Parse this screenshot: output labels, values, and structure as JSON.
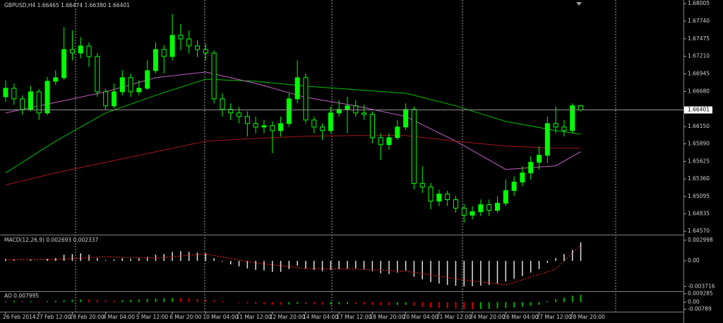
{
  "chart_data": [
    {
      "type": "candlestick",
      "title": "GBPUSD,H4  1.66465 1.66474 1.66380 1.66401",
      "color": "#00ff00",
      "up_color": "#00ff00",
      "down_color": "#000000",
      "xlim": [
        0,
        82
      ],
      "xticks": [
        {
          "value": 0,
          "label": "26 Feb 2014"
        },
        {
          "value": 4,
          "label": "27 Feb 12:00"
        },
        {
          "value": 8,
          "label": "28 Feb 20:00"
        },
        {
          "value": 12,
          "label": "4 Mar 04:00"
        },
        {
          "value": 16,
          "label": "5 Mar 12:00"
        },
        {
          "value": 20,
          "label": "6 Mar 20:00"
        },
        {
          "value": 24,
          "label": "10 Mar 04:00"
        },
        {
          "value": 28,
          "label": "11 Mar 12:00"
        },
        {
          "value": 32,
          "label": "12 Mar 20:00"
        },
        {
          "value": 36,
          "label": "14 Mar 04:00"
        },
        {
          "value": 40,
          "label": "17 Mar 12:00"
        },
        {
          "value": 44,
          "label": "18 Mar 20:00"
        },
        {
          "value": 48,
          "label": "20 Mar 04:00"
        },
        {
          "value": 52,
          "label": "21 Mar 12:00"
        },
        {
          "value": 56,
          "label": "24 Mar 20:00"
        },
        {
          "value": 60,
          "label": "26 Mar 04:00"
        },
        {
          "value": 64,
          "label": "27 Mar 12:00"
        },
        {
          "value": 68,
          "label": "28 Mar 20:00"
        }
      ],
      "ylim": [
        1.6453,
        1.6806
      ],
      "yticks": [
        1.68005,
        {
          "value": 1.6774,
          "label": "1.67740"
        },
        1.67475,
        {
          "value": 1.6721,
          "label": "1.67210"
        },
        1.66945,
        {
          "value": 1.6668,
          "label": "1.66680"
        },
        {
          "value": 1.6615,
          "label": "1.66150"
        },
        {
          "value": 1.6589,
          "label": "1.65890"
        },
        1.65625,
        {
          "value": 1.6536,
          "label": "1.65360"
        },
        1.65095,
        1.64835,
        {
          "value": 1.6457,
          "label": "1.64570"
        }
      ],
      "last_price": 1.66401,
      "open": [
        1.666,
        1.66728,
        1.66568,
        1.66409,
        1.66675,
        1.66356,
        1.66834,
        1.66888,
        1.67313,
        1.6726,
        1.67366,
        1.67207,
        1.66675,
        1.66462,
        1.66675,
        1.66888,
        1.66675,
        1.66728,
        1.66994,
        1.67313,
        1.67207,
        1.67526,
        1.67473,
        1.67366,
        1.67313,
        1.6726,
        1.66568,
        1.66409,
        1.66356,
        1.66302,
        1.66196,
        1.66143,
        1.66164,
        1.6609,
        1.66196,
        1.66568,
        1.66888,
        1.66249,
        1.66143,
        1.6609,
        1.66356,
        1.66409,
        1.66462,
        1.66356,
        1.66334,
        1.65983,
        1.65877,
        1.65983,
        1.66143,
        1.66409,
        1.65292,
        1.65238,
        1.65026,
        1.65132,
        1.65047,
        1.64919,
        1.64813,
        1.64866,
        1.64972,
        1.64887,
        1.64994,
        1.65185,
        1.65313,
        1.65451,
        1.65611,
        1.65717,
        1.66196,
        1.66143,
        1.6609,
        1.66465
      ],
      "high": [
        1.6685,
        1.668,
        1.6662,
        1.6676,
        1.6672,
        1.669,
        1.67,
        1.6765,
        1.676,
        1.675,
        1.6742,
        1.6726,
        1.6672,
        1.668,
        1.67,
        1.6695,
        1.6685,
        1.6715,
        1.6742,
        1.6738,
        1.6785,
        1.677,
        1.676,
        1.6745,
        1.674,
        1.673,
        1.6665,
        1.665,
        1.6645,
        1.6638,
        1.663,
        1.6625,
        1.6623,
        1.663,
        1.6665,
        1.6715,
        1.6695,
        1.663,
        1.662,
        1.6645,
        1.6655,
        1.666,
        1.6655,
        1.6648,
        1.6638,
        1.6605,
        1.6605,
        1.6625,
        1.665,
        1.6645,
        1.6555,
        1.653,
        1.652,
        1.6518,
        1.651,
        1.6498,
        1.6495,
        1.6505,
        1.6505,
        1.651,
        1.6535,
        1.654,
        1.6555,
        1.657,
        1.6585,
        1.663,
        1.6645,
        1.6625,
        1.665,
        1.66474
      ],
      "low": [
        1.6652,
        1.6648,
        1.6633,
        1.6638,
        1.6625,
        1.6632,
        1.6678,
        1.6685,
        1.6715,
        1.6718,
        1.6705,
        1.666,
        1.664,
        1.6642,
        1.6662,
        1.666,
        1.6662,
        1.667,
        1.6695,
        1.6695,
        1.6715,
        1.673,
        1.6725,
        1.672,
        1.6715,
        1.665,
        1.663,
        1.6625,
        1.662,
        1.66,
        1.6605,
        1.6605,
        1.6575,
        1.66,
        1.6615,
        1.665,
        1.662,
        1.6605,
        1.6595,
        1.6605,
        1.663,
        1.6605,
        1.663,
        1.6625,
        1.659,
        1.6565,
        1.658,
        1.6595,
        1.661,
        1.652,
        1.6515,
        1.649,
        1.6495,
        1.6495,
        1.6485,
        1.647,
        1.6475,
        1.648,
        1.648,
        1.6485,
        1.6495,
        1.651,
        1.6525,
        1.6535,
        1.655,
        1.656,
        1.6605,
        1.66,
        1.6605,
        1.6638
      ],
      "close": [
        1.66728,
        1.66568,
        1.66409,
        1.66675,
        1.66356,
        1.66834,
        1.66888,
        1.67313,
        1.6726,
        1.67366,
        1.67207,
        1.66675,
        1.66462,
        1.66675,
        1.66888,
        1.66675,
        1.66728,
        1.66994,
        1.67313,
        1.67207,
        1.67526,
        1.67473,
        1.67366,
        1.67313,
        1.6726,
        1.66568,
        1.66409,
        1.66356,
        1.66302,
        1.66196,
        1.66143,
        1.66164,
        1.6609,
        1.66196,
        1.66568,
        1.66888,
        1.66249,
        1.66143,
        1.6609,
        1.66356,
        1.66409,
        1.66462,
        1.66356,
        1.66334,
        1.65983,
        1.65877,
        1.65983,
        1.66143,
        1.66409,
        1.65292,
        1.65238,
        1.65026,
        1.65132,
        1.65047,
        1.64919,
        1.64813,
        1.64866,
        1.64972,
        1.64887,
        1.64994,
        1.65185,
        1.65313,
        1.65451,
        1.65611,
        1.65717,
        1.66196,
        1.66143,
        1.6609,
        1.66465,
        1.66401
      ],
      "series": [
        {
          "color": "#00c000",
          "x": [
            0,
            6,
            12,
            18,
            24,
            30,
            36,
            42,
            48,
            54,
            60,
            66,
            69
          ],
          "values": [
            1.65451,
            1.6593,
            1.66356,
            1.66622,
            1.66866,
            1.66834,
            1.6676,
            1.66707,
            1.66653,
            1.66462,
            1.66228,
            1.6609,
            1.66036
          ]
        },
        {
          "color": "#c060c0",
          "x": [
            0,
            6,
            12,
            18,
            24,
            30,
            36,
            42,
            48,
            54,
            60,
            66,
            69
          ],
          "values": [
            1.66356,
            1.66515,
            1.66675,
            1.66888,
            1.66973,
            1.66802,
            1.6659,
            1.66462,
            1.66302,
            1.6593,
            1.65504,
            1.65558,
            1.6577
          ]
        },
        {
          "color": "#a01818",
          "x": [
            0,
            6,
            12,
            18,
            24,
            30,
            36,
            42,
            48,
            54,
            60,
            66,
            69
          ],
          "values": [
            1.6527,
            1.65451,
            1.65611,
            1.6577,
            1.6593,
            1.65973,
            1.66004,
            1.66015,
            1.66015,
            1.6593,
            1.65856,
            1.65824,
            1.65824
          ]
        }
      ]
    },
    {
      "type": "macd",
      "title": "MACD(12,26,9) 0.002693 0.002337",
      "color": "#e0e0e0",
      "ylim": [
        -0.0042,
        0.0034
      ],
      "yticks": [
        0.002998,
        {
          "value": 0,
          "label": "0.00"
        },
        -0.003716
      ],
      "values": [
        0.0003,
        0.0002,
        0.0,
        0.0002,
        0.0,
        0.0003,
        0.0004,
        0.0009,
        0.001,
        0.0011,
        0.0009,
        0.0004,
        0.0001,
        0.0002,
        0.0004,
        0.0003,
        0.0004,
        0.0006,
        0.0009,
        0.001,
        0.0013,
        0.0014,
        0.0013,
        0.0012,
        0.0011,
        0.0004,
        -0.0001,
        -0.0005,
        -0.0008,
        -0.0011,
        -0.0013,
        -0.0014,
        -0.0016,
        -0.0016,
        -0.0012,
        -0.0007,
        -0.0011,
        -0.0013,
        -0.0015,
        -0.0013,
        -0.0012,
        -0.0011,
        -0.0011,
        -0.0012,
        -0.0015,
        -0.0018,
        -0.0019,
        -0.0017,
        -0.0014,
        -0.0023,
        -0.0027,
        -0.0031,
        -0.0033,
        -0.0035,
        -0.0036,
        -0.0037,
        -0.0037,
        -0.0036,
        -0.0035,
        -0.0033,
        -0.003,
        -0.0026,
        -0.0022,
        -0.0017,
        -0.0012,
        -0.0003,
        0.0004,
        0.001,
        0.0016,
        0.0027
      ],
      "signal": {
        "color": "#ff2020",
        "x": [
          0,
          6,
          12,
          18,
          24,
          30,
          36,
          42,
          48,
          54,
          60,
          66,
          69
        ],
        "values": [
          0.0002,
          0.0002,
          0.0006,
          0.0004,
          0.001,
          -0.0003,
          -0.0011,
          -0.0012,
          -0.0015,
          -0.0026,
          -0.0035,
          -0.0012,
          0.0023
        ]
      }
    },
    {
      "type": "ao",
      "title": "AO 0.007995",
      "up_color": "#00b000",
      "down_color": "#d00000",
      "ylim": [
        -0.0098,
        0.0105
      ],
      "yticks": [
        0.009285,
        {
          "value": 0,
          "label": "0.00"
        },
        -0.00789
      ],
      "values": [
        0.001,
        0.0015,
        0.001,
        0.0012,
        0.0008,
        0.001,
        0.0015,
        0.002,
        0.0025,
        0.003,
        0.0028,
        0.0025,
        0.002,
        0.0018,
        0.0022,
        0.0025,
        0.003,
        0.0035,
        0.004,
        0.0042,
        0.0045,
        0.0043,
        0.004,
        0.0035,
        0.003,
        0.002,
        0.001,
        0,
        -0.001,
        -0.0015,
        -0.002,
        -0.0025,
        -0.0028,
        -0.003,
        -0.0026,
        -0.002,
        -0.0022,
        -0.0025,
        -0.0028,
        -0.0026,
        -0.0024,
        -0.0022,
        -0.0023,
        -0.0025,
        -0.003,
        -0.0033,
        -0.0035,
        -0.0032,
        -0.003,
        -0.004,
        -0.005,
        -0.006,
        -0.0065,
        -0.007,
        -0.0072,
        -0.0075,
        -0.0077,
        -0.0076,
        -0.0074,
        -0.007,
        -0.0065,
        -0.006,
        -0.005,
        -0.004,
        -0.003,
        0.001,
        0.003,
        0.005,
        0.007,
        0.008
      ]
    }
  ]
}
